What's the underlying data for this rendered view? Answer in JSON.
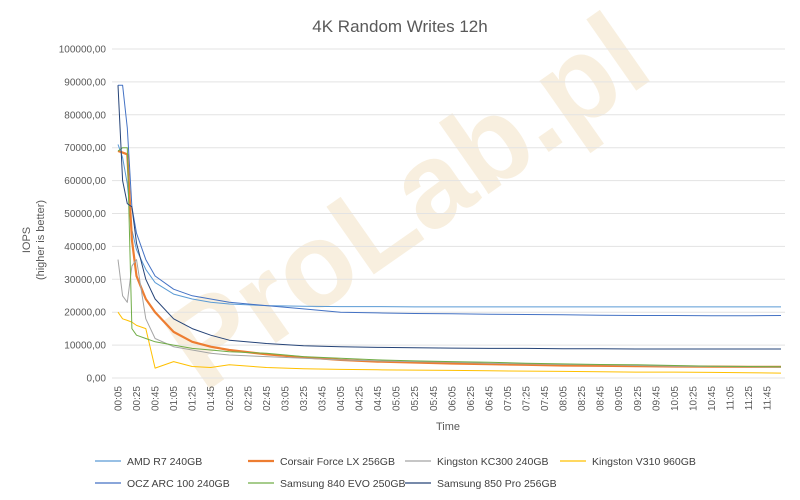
{
  "chart_data": {
    "type": "line",
    "title": "4K Random Writes 12h",
    "xlabel": "Time",
    "ylabel": "IOPS",
    "ylabel_sub": "(higher is better)",
    "ylim": [
      0,
      100000
    ],
    "yticks": [
      "0,00",
      "10000,00",
      "20000,00",
      "30000,00",
      "40000,00",
      "50000,00",
      "60000,00",
      "70000,00",
      "80000,00",
      "90000,00",
      "100000,00"
    ],
    "xticks": [
      "00:05",
      "00:25",
      "00:45",
      "01:05",
      "01:25",
      "01:45",
      "02:05",
      "02:25",
      "02:45",
      "03:05",
      "03:25",
      "03:45",
      "04:05",
      "04:25",
      "04:45",
      "05:05",
      "05:25",
      "05:45",
      "06:05",
      "06:25",
      "06:45",
      "07:05",
      "07:25",
      "07:45",
      "08:05",
      "08:25",
      "08:45",
      "09:05",
      "09:25",
      "09:45",
      "10:05",
      "10:25",
      "10:45",
      "11:05",
      "11:25",
      "11:45"
    ],
    "grid": true,
    "legend_position": "bottom",
    "x": [
      "00:05",
      "00:10",
      "00:15",
      "00:20",
      "00:25",
      "00:35",
      "00:45",
      "01:05",
      "01:25",
      "01:45",
      "02:05",
      "02:45",
      "03:25",
      "04:05",
      "04:45",
      "05:25",
      "06:05",
      "06:45",
      "07:25",
      "08:05",
      "08:45",
      "09:25",
      "10:05",
      "10:45",
      "11:25",
      "12:00"
    ],
    "series": [
      {
        "name": "AMD R7 240GB",
        "color": "#5b9bd5",
        "width": 1,
        "values": [
          71000,
          67000,
          59000,
          45000,
          39000,
          33000,
          29000,
          25500,
          24000,
          23000,
          22500,
          22000,
          21800,
          21700,
          21700,
          21600,
          21600,
          21600,
          21600,
          21600,
          21600,
          21600,
          21600,
          21600,
          21600,
          21600
        ]
      },
      {
        "name": "Corsair Force LX 256GB",
        "color": "#ed7d31",
        "width": 2.2,
        "values": [
          69000,
          68500,
          68000,
          42000,
          31000,
          24000,
          20000,
          14000,
          11000,
          9500,
          8500,
          7200,
          6300,
          5500,
          5000,
          4700,
          4400,
          4200,
          4000,
          3800,
          3700,
          3600,
          3500,
          3450,
          3400,
          3400
        ]
      },
      {
        "name": "Kingston KC300 240GB",
        "color": "#a5a5a5",
        "width": 1,
        "values": [
          36000,
          25000,
          23000,
          34000,
          36000,
          18000,
          12000,
          9500,
          8500,
          7500,
          7000,
          6500,
          6000,
          5500,
          5200,
          5000,
          4800,
          4500,
          4300,
          4100,
          4000,
          3800,
          3600,
          3500,
          3400,
          3300
        ]
      },
      {
        "name": "Kingston V310 960GB",
        "color": "#ffc000",
        "width": 1,
        "values": [
          20000,
          18000,
          17500,
          17000,
          16000,
          15000,
          3000,
          5000,
          3500,
          3200,
          4000,
          3200,
          2800,
          2600,
          2500,
          2400,
          2300,
          2200,
          2100,
          2000,
          1900,
          1800,
          1800,
          1700,
          1600,
          1500
        ]
      },
      {
        "name": "OCZ ARC 100 240GB",
        "color": "#4472c4",
        "width": 1,
        "values": [
          89000,
          89000,
          76000,
          52000,
          44000,
          36000,
          31000,
          27000,
          25000,
          24000,
          23000,
          22000,
          21000,
          20000,
          19800,
          19600,
          19500,
          19400,
          19300,
          19200,
          19100,
          19000,
          19000,
          18900,
          18900,
          19000
        ]
      },
      {
        "name": "Samsung 840 EVO 250GB",
        "color": "#70ad47",
        "width": 1,
        "values": [
          69000,
          70000,
          70000,
          15000,
          13000,
          12000,
          11000,
          10000,
          9000,
          8500,
          8000,
          7500,
          6500,
          6000,
          5500,
          5200,
          5000,
          4800,
          4500,
          4300,
          4100,
          4000,
          3800,
          3600,
          3500,
          3400
        ]
      },
      {
        "name": "Samsung 850 Pro 256GB",
        "color": "#264478",
        "width": 1,
        "values": [
          89000,
          60000,
          53000,
          52000,
          41000,
          30000,
          24000,
          18000,
          15000,
          13000,
          11500,
          10500,
          9800,
          9500,
          9300,
          9200,
          9100,
          9000,
          9000,
          8900,
          8900,
          8800,
          8800,
          8800,
          8800,
          8800
        ]
      }
    ]
  },
  "watermark": "ProLab.pl"
}
